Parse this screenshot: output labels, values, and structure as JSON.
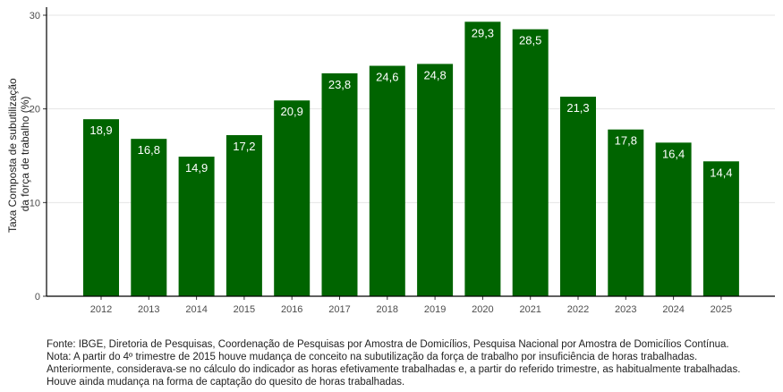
{
  "chart_data": {
    "type": "bar",
    "categories": [
      "2012",
      "2013",
      "2014",
      "2015",
      "2016",
      "2017",
      "2018",
      "2019",
      "2020",
      "2021",
      "2022",
      "2023",
      "2024",
      "2025"
    ],
    "values": [
      18.9,
      16.8,
      14.9,
      17.2,
      20.9,
      23.8,
      24.6,
      24.8,
      29.3,
      28.5,
      21.3,
      17.8,
      16.4,
      14.4
    ],
    "value_labels": [
      "18,9",
      "16,8",
      "14,9",
      "17,2",
      "20,9",
      "23,8",
      "24,6",
      "24,8",
      "29,3",
      "28,5",
      "21,3",
      "17,8",
      "16,4",
      "14,4"
    ],
    "ylabel_line1": "Taxa Composta de subutilização",
    "ylabel_line2": "da força de trabalho (%)",
    "xlabel": "",
    "ylim": [
      0,
      30
    ],
    "yticks": [
      0,
      10,
      20,
      30
    ],
    "ytick_labels": [
      "0",
      "10",
      "20",
      "30"
    ],
    "grid": "horizontal",
    "bar_color": "#006400",
    "label_color": "#ffffff"
  },
  "notes": [
    "Fonte: IBGE, Diretoria de Pesquisas, Coordenação de Pesquisas por Amostra de Domicílios, Pesquisa Nacional por Amostra de Domicílios Contínua.",
    "Nota: A partir do 4º trimestre de 2015 houve mudança de conceito na subutilização da força de trabalho por insuficiência de horas trabalhadas.",
    "Anteriormente, considerava-se no cálculo do indicador as horas efetivamente trabalhadas e, a partir do referido trimestre, as habitualmente trabalhadas.",
    "Houve ainda mudança na forma de captação do quesito de horas trabalhadas."
  ]
}
